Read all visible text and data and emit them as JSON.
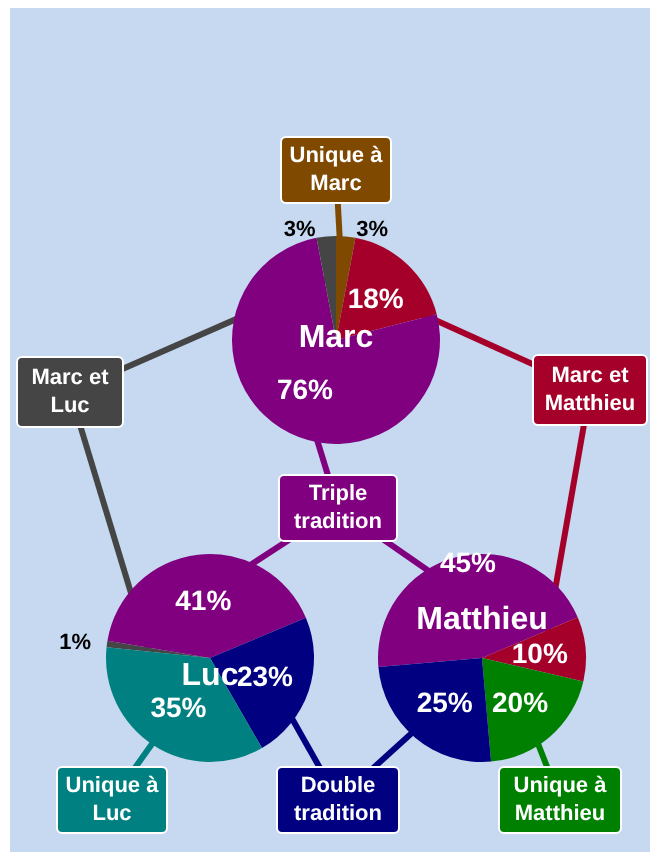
{
  "chart_data": [
    {
      "type": "pie",
      "title": "Marc",
      "categories": [
        "Unique à Marc",
        "Marc et Matthieu",
        "Triple tradition",
        "Marc et Luc"
      ],
      "values": [
        3,
        18,
        76,
        3
      ],
      "colors": [
        "#7f4a00",
        "#a5002a",
        "#800080",
        "#454545"
      ],
      "value_labels": [
        "3%",
        "18%",
        "76%",
        "3%"
      ]
    },
    {
      "type": "pie",
      "title": "Luc",
      "categories": [
        null,
        null,
        "Double tradition",
        "Unique à Luc"
      ],
      "values": [
        1,
        41,
        23,
        35
      ],
      "colors": [
        "#454545",
        "#800080",
        "#000080",
        "#008080"
      ],
      "value_labels": [
        "1%",
        "41%",
        "23%",
        "35%"
      ]
    },
    {
      "type": "pie",
      "title": "Matthieu",
      "categories": [
        null,
        null,
        "Unique à Matthieu",
        null
      ],
      "values": [
        45,
        10,
        20,
        25
      ],
      "colors": [
        "#800080",
        "#a5002a",
        "#008000",
        "#000080"
      ],
      "value_labels": [
        "45%",
        "10%",
        "20%",
        "25%"
      ]
    }
  ]
}
